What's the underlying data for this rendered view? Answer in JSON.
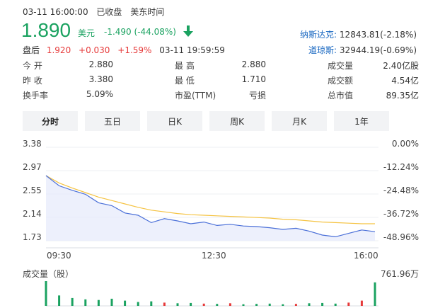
{
  "header": {
    "datetime": "03-11 16:00:00",
    "status": "已收盘",
    "timezone": "美东时间"
  },
  "quote": {
    "price": "1.890",
    "unit": "美元",
    "change": "-1.490",
    "change_pct": "(-44.08%)",
    "direction_icon": "arrow-down-icon"
  },
  "after_hours": {
    "label": "盘后",
    "price": "1.920",
    "change": "+0.030",
    "change_pct": "+1.59%",
    "time": "03-11 19:59:59"
  },
  "indices": [
    {
      "name": "纳斯达克:",
      "value": "12843.81(-2.18%)"
    },
    {
      "name": "道琼斯:",
      "value": "32944.19(-0.69%)"
    }
  ],
  "stats": [
    [
      {
        "label": "今 开",
        "value": "2.880"
      },
      {
        "label": "最 高",
        "value": "2.880"
      },
      {
        "label": "成交量",
        "value": "2.40亿股"
      }
    ],
    [
      {
        "label": "昨 收",
        "value": "3.380"
      },
      {
        "label": "最 低",
        "value": "1.710"
      },
      {
        "label": "成交额",
        "value": "4.54亿"
      }
    ],
    [
      {
        "label": "换手率",
        "value": "5.09%"
      },
      {
        "label": "市盈(TTM)",
        "value": "亏损"
      },
      {
        "label": "总市值",
        "value": "89.35亿"
      }
    ]
  ],
  "tabs": [
    "分时",
    "五日",
    "日K",
    "周K",
    "月K",
    "1年"
  ],
  "active_tab": "分时",
  "colors": {
    "green": "#1aa260",
    "red": "#e63a3a",
    "price_line": "#4a6fd8",
    "avg_line": "#f5c342",
    "area": "#e8ecfb"
  },
  "chart_data": {
    "type": "line",
    "y_left_ticks": [
      "3.38",
      "2.97",
      "2.55",
      "2.14",
      "1.73"
    ],
    "y_right_ticks": [
      "0.00%",
      "-12.24%",
      "-24.48%",
      "-36.72%",
      "-48.96%"
    ],
    "x_ticks": [
      "09:30",
      "12:30",
      "16:00"
    ],
    "ylim": [
      1.73,
      3.38
    ],
    "volume_label": "成交量（股）",
    "volume_max": "761.96万",
    "x": [
      "09:30",
      "09:35",
      "09:40",
      "09:50",
      "10:00",
      "10:10",
      "10:20",
      "10:30",
      "10:45",
      "11:00",
      "11:15",
      "11:30",
      "11:45",
      "12:00",
      "12:15",
      "12:30",
      "12:45",
      "13:00",
      "13:30",
      "14:00",
      "14:30",
      "15:00",
      "15:15",
      "15:30",
      "15:45",
      "16:00"
    ],
    "series": [
      {
        "values": [
          2.88,
          2.7,
          2.62,
          2.55,
          2.4,
          2.35,
          2.22,
          2.18,
          2.05,
          2.12,
          2.08,
          2.03,
          2.06,
          2.0,
          2.02,
          1.99,
          1.98,
          1.96,
          1.93,
          1.95,
          1.9,
          1.83,
          1.8,
          1.86,
          1.92,
          1.89
        ]
      },
      {
        "values": [
          2.88,
          2.75,
          2.66,
          2.58,
          2.5,
          2.44,
          2.38,
          2.32,
          2.27,
          2.24,
          2.21,
          2.19,
          2.18,
          2.17,
          2.16,
          2.15,
          2.14,
          2.13,
          2.11,
          2.1,
          2.08,
          2.06,
          2.05,
          2.04,
          2.03,
          2.03
        ]
      }
    ],
    "volume": [
      7.6,
      3.2,
      2.4,
      2.0,
      1.8,
      2.2,
      1.6,
      1.2,
      1.4,
      1.0,
      0.8,
      0.9,
      0.7,
      0.6,
      0.8,
      0.5,
      0.6,
      0.7,
      0.5,
      0.6,
      0.8,
      0.9,
      0.7,
      1.0,
      1.6,
      7.2
    ]
  }
}
